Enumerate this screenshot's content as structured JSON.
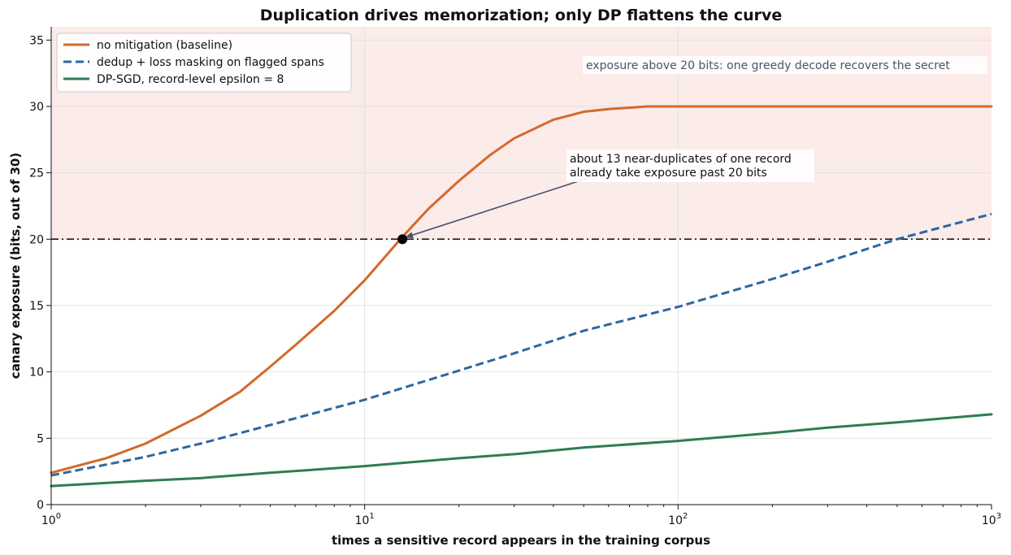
{
  "chart_data": {
    "type": "line",
    "title": "Duplication drives memorization; only DP flattens the curve",
    "xlabel": "times a sensitive record appears in the training corpus",
    "ylabel": "canary exposure (bits, out of 30)",
    "x_scale": "log",
    "xlim": [
      1,
      1000
    ],
    "ylim": [
      0,
      36
    ],
    "x_ticks": [
      {
        "value": 1,
        "base": "10",
        "exp": "0"
      },
      {
        "value": 10,
        "base": "10",
        "exp": "1"
      },
      {
        "value": 100,
        "base": "10",
        "exp": "2"
      },
      {
        "value": 1000,
        "base": "10",
        "exp": "3"
      }
    ],
    "y_ticks": [
      {
        "value": 0,
        "label": "0"
      },
      {
        "value": 5,
        "label": "5"
      },
      {
        "value": 10,
        "label": "10"
      },
      {
        "value": 15,
        "label": "15"
      },
      {
        "value": 20,
        "label": "20"
      },
      {
        "value": 25,
        "label": "25"
      },
      {
        "value": 30,
        "label": "30"
      },
      {
        "value": 35,
        "label": "35"
      }
    ],
    "grid": true,
    "legend_position": "top-left",
    "series": [
      {
        "name": "no mitigation (baseline)",
        "color": "#d4692a",
        "style": "solid",
        "x": [
          1,
          1.5,
          2,
          3,
          4,
          5,
          6,
          8,
          10,
          13,
          16,
          20,
          25,
          30,
          40,
          50,
          60,
          80,
          100,
          150,
          200,
          300,
          500,
          1000
        ],
        "y": [
          2.4,
          3.5,
          4.6,
          6.7,
          8.5,
          10.4,
          12.0,
          14.6,
          16.9,
          20.0,
          22.3,
          24.4,
          26.3,
          27.6,
          29.0,
          29.6,
          29.8,
          30.0,
          30.0,
          30.0,
          30.0,
          30.0,
          30.0,
          30.0
        ]
      },
      {
        "name": "dedup + loss masking on flagged spans",
        "color": "#2e67a0",
        "style": "dashed",
        "x": [
          1,
          2,
          3,
          5,
          10,
          20,
          30,
          50,
          100,
          200,
          300,
          500,
          1000
        ],
        "y": [
          2.2,
          3.6,
          4.6,
          6.0,
          7.9,
          10.1,
          11.4,
          13.1,
          14.9,
          17.0,
          18.3,
          20.0,
          21.9
        ]
      },
      {
        "name": "DP-SGD, record-level epsilon = 8",
        "color": "#2e7d52",
        "style": "solid",
        "x": [
          1,
          2,
          3,
          5,
          10,
          20,
          30,
          50,
          100,
          200,
          300,
          500,
          1000
        ],
        "y": [
          1.4,
          1.8,
          2.0,
          2.4,
          2.9,
          3.5,
          3.8,
          4.3,
          4.8,
          5.4,
          5.8,
          6.2,
          6.8
        ]
      }
    ],
    "threshold": {
      "y": 20
    },
    "band_label": "exposure above 20 bits: one greedy decode recovers the secret",
    "annotation": {
      "lines": [
        "about 13 near-duplicates of one record",
        "already take exposure past 20 bits"
      ],
      "point": {
        "x": 13.2,
        "y": 20
      },
      "text_anchor": {
        "x": 45,
        "y": 25.6
      }
    }
  }
}
